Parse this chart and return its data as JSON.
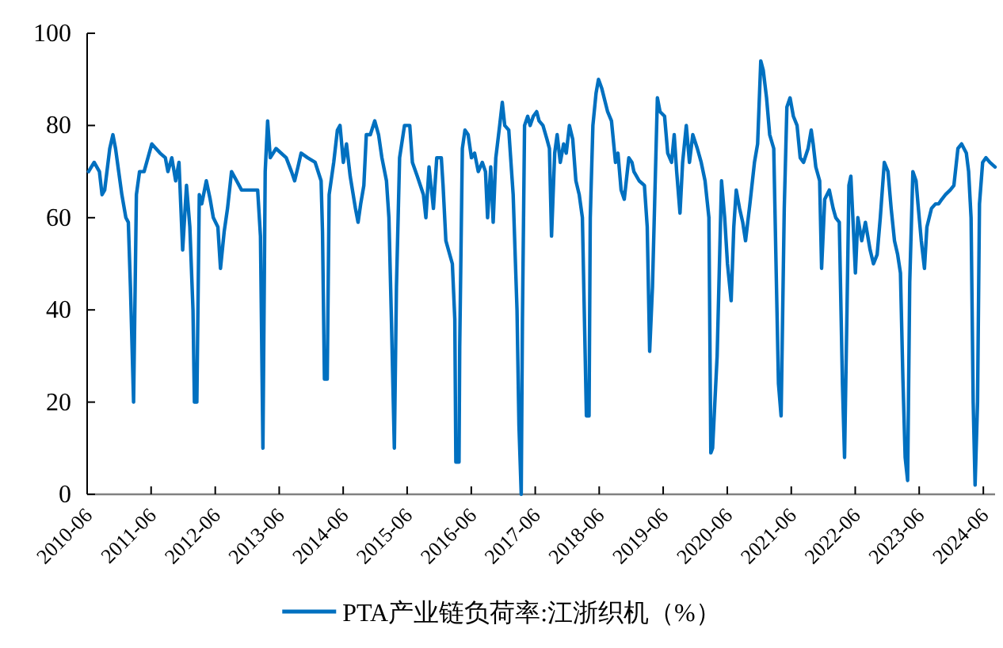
{
  "chart_data": {
    "type": "line",
    "xlim": [
      "2010-06",
      "2024-08-07"
    ],
    "ylim": [
      0,
      100
    ],
    "yticks": [
      0,
      20,
      40,
      60,
      80,
      100
    ],
    "xticks": [
      "2010-06",
      "2011-06",
      "2012-06",
      "2013-06",
      "2014-06",
      "2015-06",
      "2016-06",
      "2017-06",
      "2018-06",
      "2019-06",
      "2020-06",
      "2021-06",
      "2022-06",
      "2023-06",
      "2024-06"
    ],
    "grid": false,
    "legend": "bottom",
    "line_style": "solid",
    "series": [
      {
        "name": "PTA产业链负荷率:江浙织机（%）",
        "color": "#0070c0",
        "x": [
          "2010-06-09",
          "2010-07-11",
          "2010-08-10",
          "2010-08-25",
          "2010-09-09",
          "2010-10-08",
          "2010-10-26",
          "2010-11-10",
          "2010-11-28",
          "2010-12-16",
          "2011-01-08",
          "2011-01-22",
          "2011-02-03",
          "2011-02-21",
          "2011-03-09",
          "2011-03-27",
          "2011-04-22",
          "2011-05-14",
          "2011-06-05",
          "2011-07-22",
          "2011-08-21",
          "2011-09-05",
          "2011-09-27",
          "2011-10-19",
          "2011-11-07",
          "2011-11-28",
          "2011-12-20",
          "2012-01-08",
          "2012-01-26",
          "2012-02-03",
          "2012-02-17",
          "2012-03-02",
          "2012-03-16",
          "2012-04-11",
          "2012-05-03",
          "2012-05-21",
          "2012-06-16",
          "2012-07-01",
          "2012-07-22",
          "2012-08-10",
          "2012-09-02",
          "2012-10-01",
          "2012-10-29",
          "2012-12-13",
          "2013-01-29",
          "2013-02-14",
          "2013-02-28",
          "2013-03-13",
          "2013-03-27",
          "2013-04-11",
          "2013-05-14",
          "2013-07-11",
          "2013-08-10",
          "2013-08-28",
          "2013-09-16",
          "2013-10-04",
          "2013-11-10",
          "2013-12-23",
          "2014-01-26",
          "2014-02-03",
          "2014-02-14",
          "2014-03-02",
          "2014-03-13",
          "2014-04-08",
          "2014-04-29",
          "2014-05-14",
          "2014-06-02",
          "2014-06-20",
          "2014-07-11",
          "2014-08-10",
          "2014-08-25",
          "2014-09-09",
          "2014-09-27",
          "2014-10-11",
          "2014-11-03",
          "2014-11-28",
          "2014-12-20",
          "2015-01-08",
          "2015-02-03",
          "2015-02-17",
          "2015-03-02",
          "2015-03-20",
          "2015-04-01",
          "2015-04-19",
          "2015-05-17",
          "2015-06-16",
          "2015-07-01",
          "2015-07-29",
          "2015-09-02",
          "2015-09-16",
          "2015-10-04",
          "2015-10-29",
          "2015-11-17",
          "2015-12-13",
          "2015-12-23",
          "2016-01-08",
          "2016-02-14",
          "2016-02-28",
          "2016-03-05",
          "2016-03-23",
          "2016-03-27",
          "2016-04-11",
          "2016-04-26",
          "2016-05-14",
          "2016-06-02",
          "2016-06-20",
          "2016-07-11",
          "2016-08-03",
          "2016-08-21",
          "2016-09-02",
          "2016-09-20",
          "2016-10-04",
          "2016-10-19",
          "2016-11-10",
          "2016-11-25",
          "2016-12-09",
          "2017-01-01",
          "2017-01-26",
          "2017-02-17",
          "2017-02-28",
          "2017-03-13",
          "2017-03-20",
          "2017-04-01",
          "2017-04-19",
          "2017-05-03",
          "2017-05-21",
          "2017-06-09",
          "2017-06-23",
          "2017-07-15",
          "2017-08-07",
          "2017-08-21",
          "2017-09-02",
          "2017-09-20",
          "2017-10-04",
          "2017-10-22",
          "2017-11-10",
          "2017-11-25",
          "2017-12-13",
          "2018-01-01",
          "2018-01-19",
          "2018-02-07",
          "2018-02-25",
          "2018-03-20",
          "2018-04-04",
          "2018-04-11",
          "2018-04-26",
          "2018-05-14",
          "2018-05-28",
          "2018-06-16",
          "2018-07-19",
          "2018-08-10",
          "2018-09-02",
          "2018-09-16",
          "2018-10-04",
          "2018-10-22",
          "2018-11-17",
          "2018-12-05",
          "2018-12-16",
          "2019-01-15",
          "2019-02-14",
          "2019-03-02",
          "2019-03-16",
          "2019-04-01",
          "2019-04-29",
          "2019-05-14",
          "2019-06-09",
          "2019-06-27",
          "2019-07-19",
          "2019-08-03",
          "2019-08-17",
          "2019-09-05",
          "2019-09-20",
          "2019-10-11",
          "2019-10-29",
          "2019-11-17",
          "2019-12-13",
          "2020-01-04",
          "2020-01-26",
          "2020-02-17",
          "2020-02-28",
          "2020-03-09",
          "2020-04-04",
          "2020-04-29",
          "2020-05-17",
          "2020-06-02",
          "2020-06-23",
          "2020-07-08",
          "2020-07-22",
          "2020-08-10",
          "2020-08-28",
          "2020-09-13",
          "2020-10-08",
          "2020-11-03",
          "2020-11-21",
          "2020-12-09",
          "2020-12-23",
          "2021-01-11",
          "2021-01-29",
          "2021-02-21",
          "2021-03-05",
          "2021-03-20",
          "2021-04-04",
          "2021-04-22",
          "2021-05-07",
          "2021-05-25",
          "2021-06-13",
          "2021-07-04",
          "2021-07-22",
          "2021-08-10",
          "2021-09-05",
          "2021-09-23",
          "2021-10-04",
          "2021-10-19",
          "2021-11-10",
          "2021-11-21",
          "2021-12-09",
          "2022-01-04",
          "2022-01-26",
          "2022-02-10",
          "2022-03-02",
          "2022-03-20",
          "2022-04-01",
          "2022-04-15",
          "2022-04-26",
          "2022-05-07",
          "2022-05-21",
          "2022-06-02",
          "2022-06-16",
          "2022-07-08",
          "2022-07-29",
          "2022-08-25",
          "2022-09-13",
          "2022-10-04",
          "2022-10-22",
          "2022-11-14",
          "2022-12-05",
          "2022-12-23",
          "2023-01-11",
          "2023-01-29",
          "2023-02-14",
          "2023-02-28",
          "2023-03-13",
          "2023-03-27",
          "2023-04-08",
          "2023-04-26",
          "2023-05-14",
          "2023-05-25",
          "2023-06-13",
          "2023-07-01",
          "2023-07-15",
          "2023-08-10",
          "2023-09-02",
          "2023-09-20",
          "2023-10-08",
          "2023-10-29",
          "2023-11-25",
          "2023-12-16",
          "2024-01-08",
          "2024-01-29",
          "2024-02-25",
          "2024-03-09",
          "2024-03-23",
          "2024-04-04",
          "2024-04-15",
          "2024-04-29",
          "2024-05-10",
          "2024-05-28",
          "2024-06-16",
          "2024-07-08",
          "2024-08-07"
        ],
        "values": [
          70,
          72,
          70,
          65,
          66,
          75,
          78,
          75,
          70,
          65,
          60,
          59,
          45,
          20,
          65,
          70,
          70,
          73,
          76,
          74,
          73,
          70,
          73,
          68,
          72,
          53,
          67,
          58,
          40,
          20,
          20,
          65,
          63,
          68,
          64,
          60,
          58,
          49,
          57,
          62,
          70,
          68,
          66,
          66,
          66,
          56,
          10,
          70,
          81,
          73,
          75,
          73,
          70,
          68,
          71,
          74,
          73,
          72,
          68,
          57,
          25,
          25,
          65,
          72,
          79,
          80,
          72,
          76,
          69,
          62,
          59,
          63,
          67,
          78,
          78,
          81,
          78,
          73,
          68,
          60,
          40,
          10,
          45,
          73,
          80,
          80,
          72,
          69,
          65,
          60,
          71,
          62,
          73,
          73,
          67,
          55,
          50,
          38,
          7,
          7,
          32,
          75,
          79,
          78,
          73,
          74,
          70,
          72,
          70,
          60,
          71,
          59,
          73,
          80,
          85,
          80,
          79,
          65,
          40,
          15,
          0,
          38,
          80,
          82,
          80,
          82,
          83,
          81,
          80,
          77,
          75,
          56,
          74,
          78,
          72,
          76,
          74,
          80,
          77,
          68,
          65,
          60,
          17,
          17,
          60,
          80,
          87,
          90,
          88,
          83,
          81,
          72,
          74,
          66,
          64,
          73,
          72,
          70,
          68,
          67,
          58,
          31,
          45,
          86,
          83,
          82,
          74,
          72,
          78,
          70,
          61,
          72,
          80,
          72,
          78,
          75,
          72,
          68,
          60,
          9,
          10,
          30,
          68,
          60,
          50,
          42,
          58,
          66,
          62,
          59,
          55,
          63,
          72,
          76,
          94,
          92,
          86,
          78,
          75,
          52,
          24,
          17,
          62,
          84,
          86,
          82,
          80,
          73,
          72,
          75,
          79,
          76,
          71,
          68,
          49,
          64,
          66,
          62,
          60,
          59,
          24,
          8,
          40,
          67,
          69,
          58,
          48,
          60,
          55,
          59,
          53,
          50,
          52,
          60,
          72,
          70,
          62,
          55,
          52,
          48,
          25,
          8,
          3,
          46,
          70,
          68,
          63,
          55,
          49,
          58,
          62,
          63,
          63,
          64,
          65,
          66,
          67,
          75,
          76,
          74,
          70,
          60,
          20,
          2,
          20,
          63,
          72,
          73,
          72,
          71
        ]
      }
    ]
  }
}
